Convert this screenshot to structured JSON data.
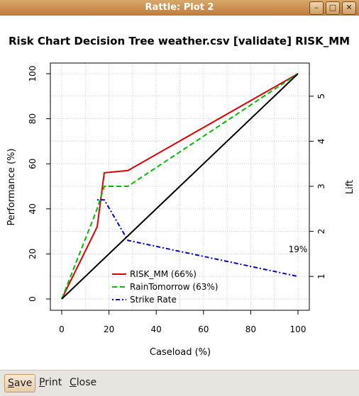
{
  "window": {
    "title": "Rattle: Plot 2",
    "buttons": [
      "minimize-icon",
      "maximize-icon",
      "close-icon"
    ]
  },
  "buttons": {
    "save": {
      "first": "S",
      "rest": "ave"
    },
    "print": {
      "first": "P",
      "rest": "rint"
    },
    "close": {
      "first": "C",
      "rest": "lose"
    }
  },
  "chart_data": {
    "type": "line",
    "title": "Risk Chart Decision Tree weather.csv [validate] RISK_MM",
    "xlabel": "Caseload (%)",
    "ylabel": "Performance (%)",
    "y2label": "Lift",
    "xlim": [
      0,
      100
    ],
    "ylim": [
      0,
      100
    ],
    "y2lim": [
      0.5,
      5.5
    ],
    "xticks": [
      "0",
      "20",
      "40",
      "60",
      "80",
      "100"
    ],
    "yticks": [
      "0",
      "20",
      "40",
      "60",
      "80",
      "100"
    ],
    "y2ticks": [
      "1",
      "2",
      "3",
      "4",
      "5"
    ],
    "grid": true,
    "legend_position": "bottom-center",
    "annotation": "19%",
    "series": [
      {
        "name": "RISK_MM (66%)",
        "color": "#dd0000",
        "dash": "solid",
        "axis": "left",
        "x": [
          0,
          15,
          18,
          28,
          100
        ],
        "y": [
          0,
          32,
          56,
          57,
          100
        ]
      },
      {
        "name": "RainTomorrow (63%)",
        "color": "#00bb00",
        "dash": "dashed",
        "axis": "left",
        "x": [
          0,
          15,
          18,
          28,
          100
        ],
        "y": [
          0,
          40,
          50,
          50,
          100
        ]
      },
      {
        "name": "Strike Rate",
        "color": "#0000cc",
        "dash": "dotdash",
        "axis": "right",
        "x": [
          15,
          18,
          28,
          100
        ],
        "y": [
          2.7,
          2.7,
          1.8,
          1.0
        ]
      },
      {
        "name": "",
        "color": "#000000",
        "dash": "solid",
        "axis": "left",
        "x": [
          0,
          100
        ],
        "y": [
          0,
          100
        ]
      }
    ]
  }
}
